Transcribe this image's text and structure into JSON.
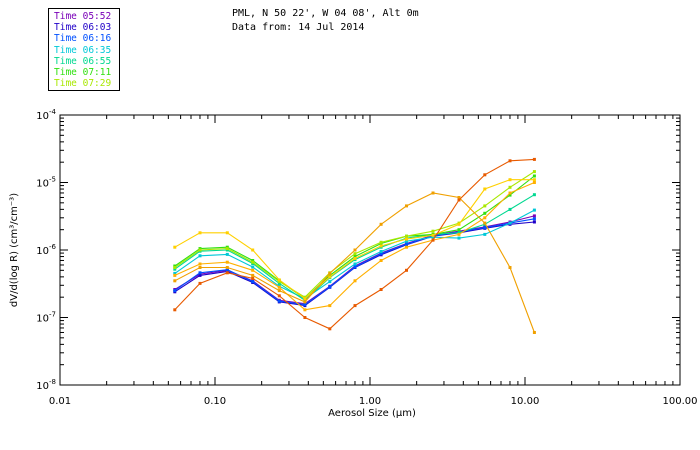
{
  "header": {
    "line1": "PML, N 50 22', W 04 08', Alt 0m",
    "line2": "Data from: 14 Jul 2014"
  },
  "legend": [
    {
      "label": "Time 05:52",
      "color": "#7a00b8"
    },
    {
      "label": "Time 06:03",
      "color": "#2000c8"
    },
    {
      "label": "Time 06:16",
      "color": "#0050ff"
    },
    {
      "label": "Time 06:35",
      "color": "#00c8d8"
    },
    {
      "label": "Time 06:55",
      "color": "#00d890"
    },
    {
      "label": "Time 07:11",
      "color": "#30e010"
    },
    {
      "label": "Time 07:29",
      "color": "#a8e800"
    }
  ],
  "chart_data": {
    "type": "line",
    "xscale": "log",
    "yscale": "log",
    "xlim": [
      0.01,
      100.0
    ],
    "ylim": [
      1e-08,
      0.0001
    ],
    "xlabel": "Aerosol Size (μm)",
    "ylabel": "dV/d(log R) (cm³/cm⁻³)",
    "xticks": [
      {
        "v": 0.01,
        "label": "0.01"
      },
      {
        "v": 0.1,
        "label": "0.10"
      },
      {
        "v": 1.0,
        "label": "1.00"
      },
      {
        "v": 10.0,
        "label": "10.00"
      },
      {
        "v": 100.0,
        "label": "100.00"
      }
    ],
    "yticks": [
      {
        "v": 1e-08,
        "exp": "-8"
      },
      {
        "v": 1e-07,
        "exp": "-7"
      },
      {
        "v": 1e-06,
        "exp": "-6"
      },
      {
        "v": 1e-05,
        "exp": "-5"
      },
      {
        "v": 0.0001,
        "exp": "-4"
      }
    ],
    "x": [
      0.055,
      0.08,
      0.12,
      0.175,
      0.26,
      0.38,
      0.55,
      0.8,
      1.18,
      1.72,
      2.55,
      3.75,
      5.5,
      8.0,
      11.5
    ],
    "series": [
      {
        "name": "Time 05:52",
        "color": "#7a00b8",
        "values": [
          2.6e-07,
          4.4e-07,
          5e-07,
          3.5e-07,
          1.8e-07,
          1.6e-07,
          2.9e-07,
          5.8e-07,
          9e-07,
          1.25e-06,
          1.65e-06,
          1.9e-06,
          2.2e-06,
          2.6e-06,
          3.2e-06
        ]
      },
      {
        "name": "Time 06:03",
        "color": "#2000c8",
        "values": [
          2.4e-07,
          4.2e-07,
          4.8e-07,
          3.3e-07,
          1.7e-07,
          1.5e-07,
          2.8e-07,
          5.5e-07,
          8.5e-07,
          1.2e-06,
          1.6e-06,
          1.8e-06,
          2.1e-06,
          2.4e-06,
          2.6e-06
        ]
      },
      {
        "name": "Time 06:16",
        "color": "#0050ff",
        "values": [
          2.5e-07,
          4.6e-07,
          5.1e-07,
          3.4e-07,
          1.75e-07,
          1.55e-07,
          2.85e-07,
          5.6e-07,
          8.8e-07,
          1.22e-06,
          1.62e-06,
          1.85e-06,
          2.15e-06,
          2.5e-06,
          2.9e-06
        ]
      },
      {
        "name": "Time 06:35",
        "color": "#00c8d8",
        "values": [
          4.5e-07,
          8.2e-07,
          8.6e-07,
          5.6e-07,
          2.9e-07,
          1.9e-07,
          3.4e-07,
          6.2e-07,
          9.5e-07,
          1.35e-06,
          1.55e-06,
          1.5e-06,
          1.7e-06,
          2.5e-06,
          3.9e-06
        ]
      },
      {
        "name": "Time 06:55",
        "color": "#00d890",
        "values": [
          5.2e-07,
          9.6e-07,
          1e-06,
          6.3e-07,
          3.2e-07,
          1.8e-07,
          3.9e-07,
          7.2e-07,
          1.1e-06,
          1.5e-06,
          1.7e-06,
          1.8e-06,
          2.4e-06,
          4e-06,
          6.6e-06
        ]
      },
      {
        "name": "Time 07:11",
        "color": "#30e010",
        "values": [
          5.8e-07,
          1.05e-06,
          1.1e-06,
          7e-07,
          3.5e-07,
          1.9e-07,
          4.2e-07,
          8e-07,
          1.25e-06,
          1.6e-06,
          1.7e-06,
          2e-06,
          3.5e-06,
          6.5e-06,
          1.25e-05
        ]
      },
      {
        "name": "Time 07:29",
        "color": "#a8e800",
        "values": [
          5.5e-07,
          1e-06,
          1.05e-06,
          6.6e-07,
          3.4e-07,
          2e-07,
          4.6e-07,
          8.8e-07,
          1.3e-06,
          1.6e-06,
          1.9e-06,
          2.5e-06,
          4.5e-06,
          8.5e-06,
          1.45e-05
        ]
      },
      {
        "name": "",
        "color": "#ffd000",
        "values": [
          1.1e-06,
          1.8e-06,
          1.8e-06,
          1e-06,
          3.6e-07,
          1.9e-07,
          4e-07,
          7.5e-07,
          1.15e-06,
          1.45e-06,
          1.65e-06,
          2.4e-06,
          8e-06,
          1.1e-05,
          1.1e-05
        ]
      },
      {
        "name": "",
        "color": "#ffb000",
        "values": [
          4.2e-07,
          6.2e-07,
          6.6e-07,
          5e-07,
          2.8e-07,
          1.3e-07,
          1.5e-07,
          3.5e-07,
          7e-07,
          1.1e-06,
          1.4e-06,
          1.7e-06,
          3e-06,
          7e-06,
          1e-05
        ]
      },
      {
        "name": "",
        "color": "#f0a000",
        "values": [
          3.5e-07,
          5.5e-07,
          5.5e-07,
          4.2e-07,
          2.5e-07,
          1.7e-07,
          4.5e-07,
          1e-06,
          2.4e-06,
          4.5e-06,
          7e-06,
          6e-06,
          2.5e-06,
          5.5e-07,
          6e-08
        ]
      },
      {
        "name": "",
        "color": "#e85a00",
        "values": [
          1.3e-07,
          3.2e-07,
          4.6e-07,
          3.8e-07,
          2.1e-07,
          1e-07,
          6.8e-08,
          1.5e-07,
          2.6e-07,
          5e-07,
          1.4e-06,
          5.5e-06,
          1.3e-05,
          2.1e-05,
          2.2e-05
        ]
      }
    ]
  }
}
